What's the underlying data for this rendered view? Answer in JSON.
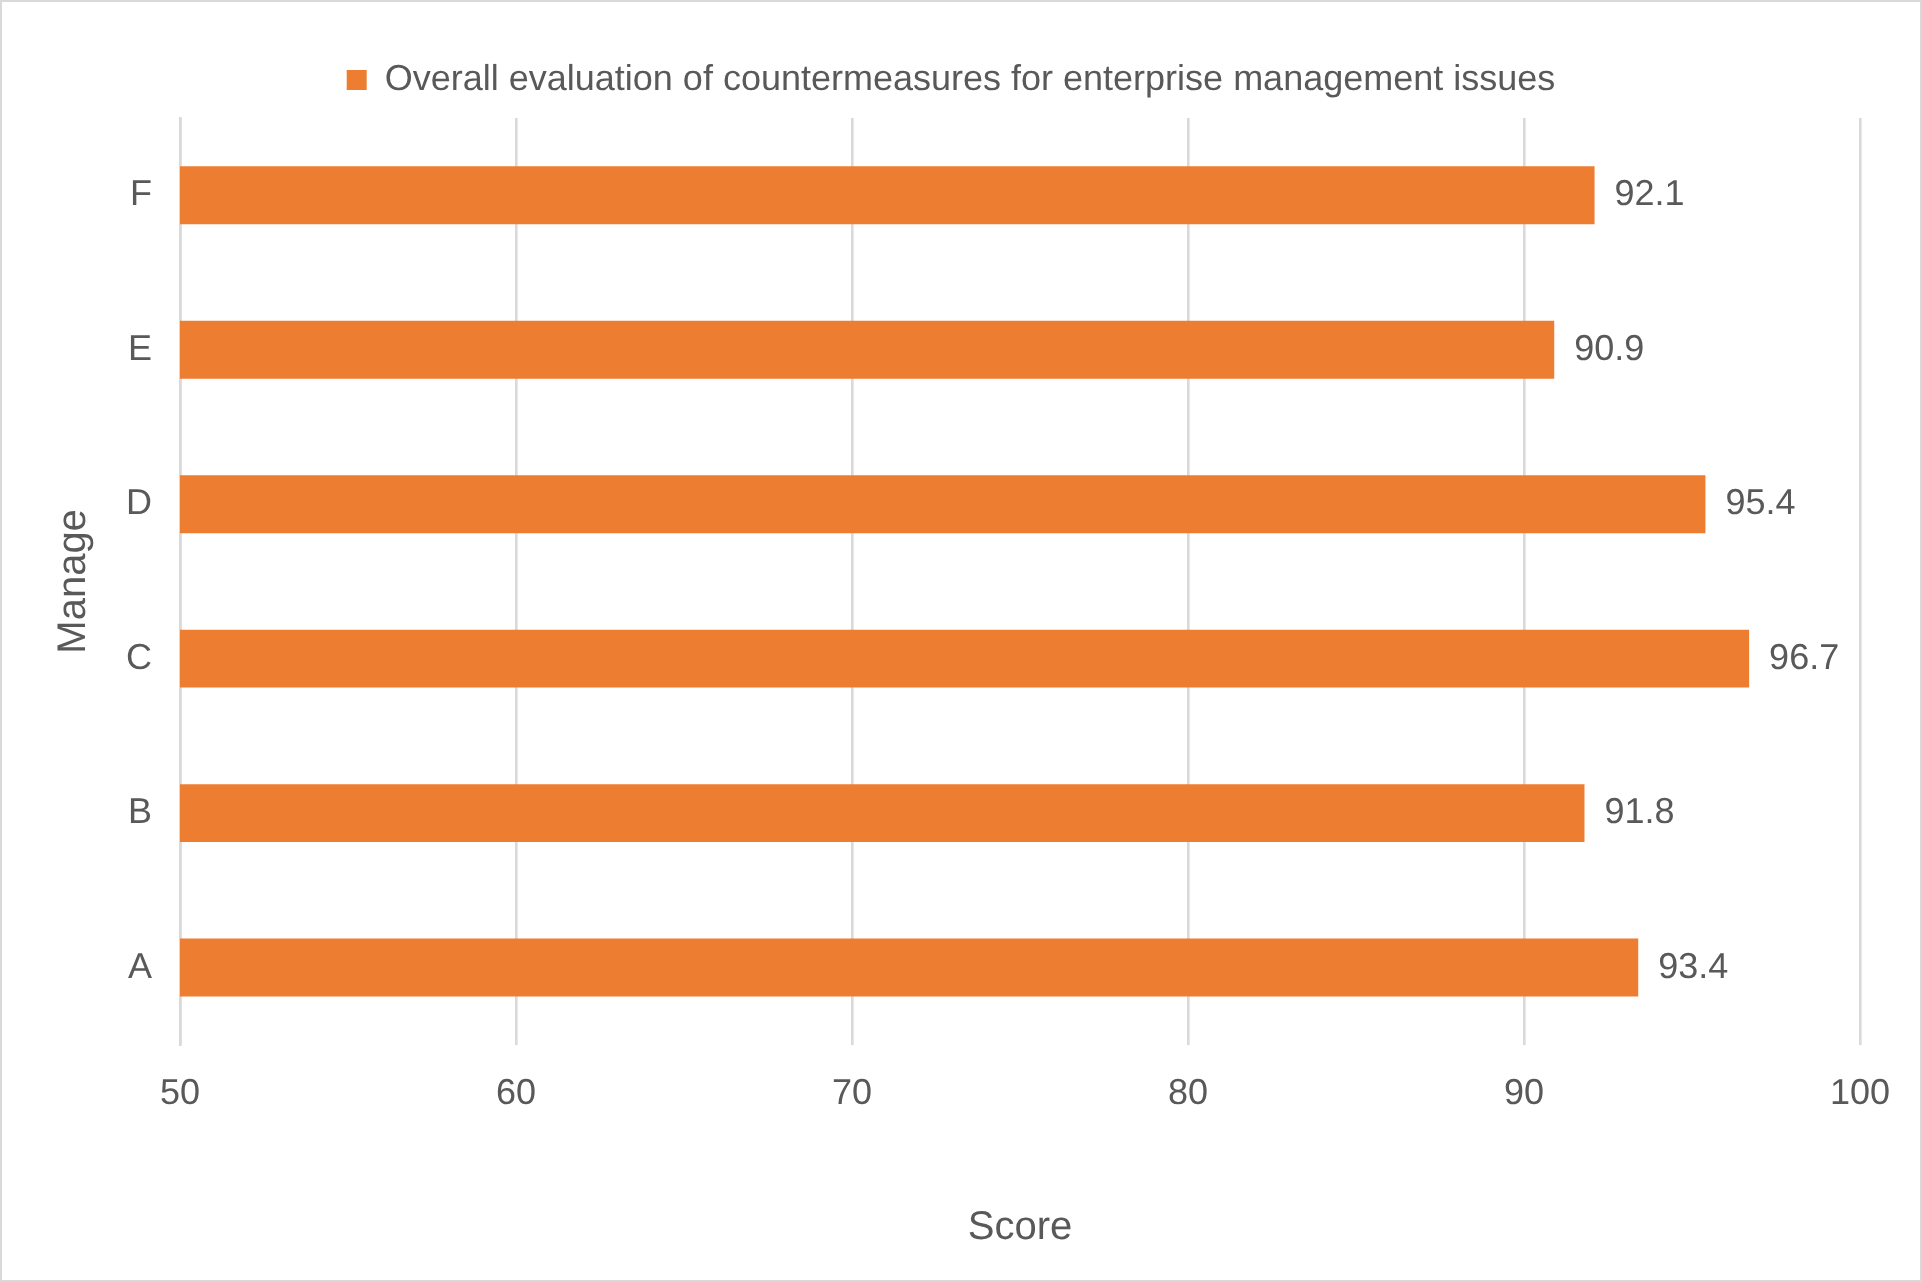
{
  "chart_data": {
    "type": "bar",
    "orientation": "horizontal",
    "xlabel": "Score",
    "ylabel": "Manage",
    "categories": [
      "F",
      "E",
      "D",
      "C",
      "B",
      "A"
    ],
    "series": [
      {
        "name": "Overall evaluation of countermeasures for enterprise management issues",
        "color": "#ed7d31",
        "values": [
          92.1,
          90.9,
          95.4,
          96.7,
          91.8,
          93.4
        ]
      }
    ],
    "xlim": [
      50,
      100
    ],
    "xticks": [
      50,
      60,
      70,
      80,
      90,
      100
    ],
    "grid": "x",
    "legend": "top",
    "data_labels": true
  }
}
